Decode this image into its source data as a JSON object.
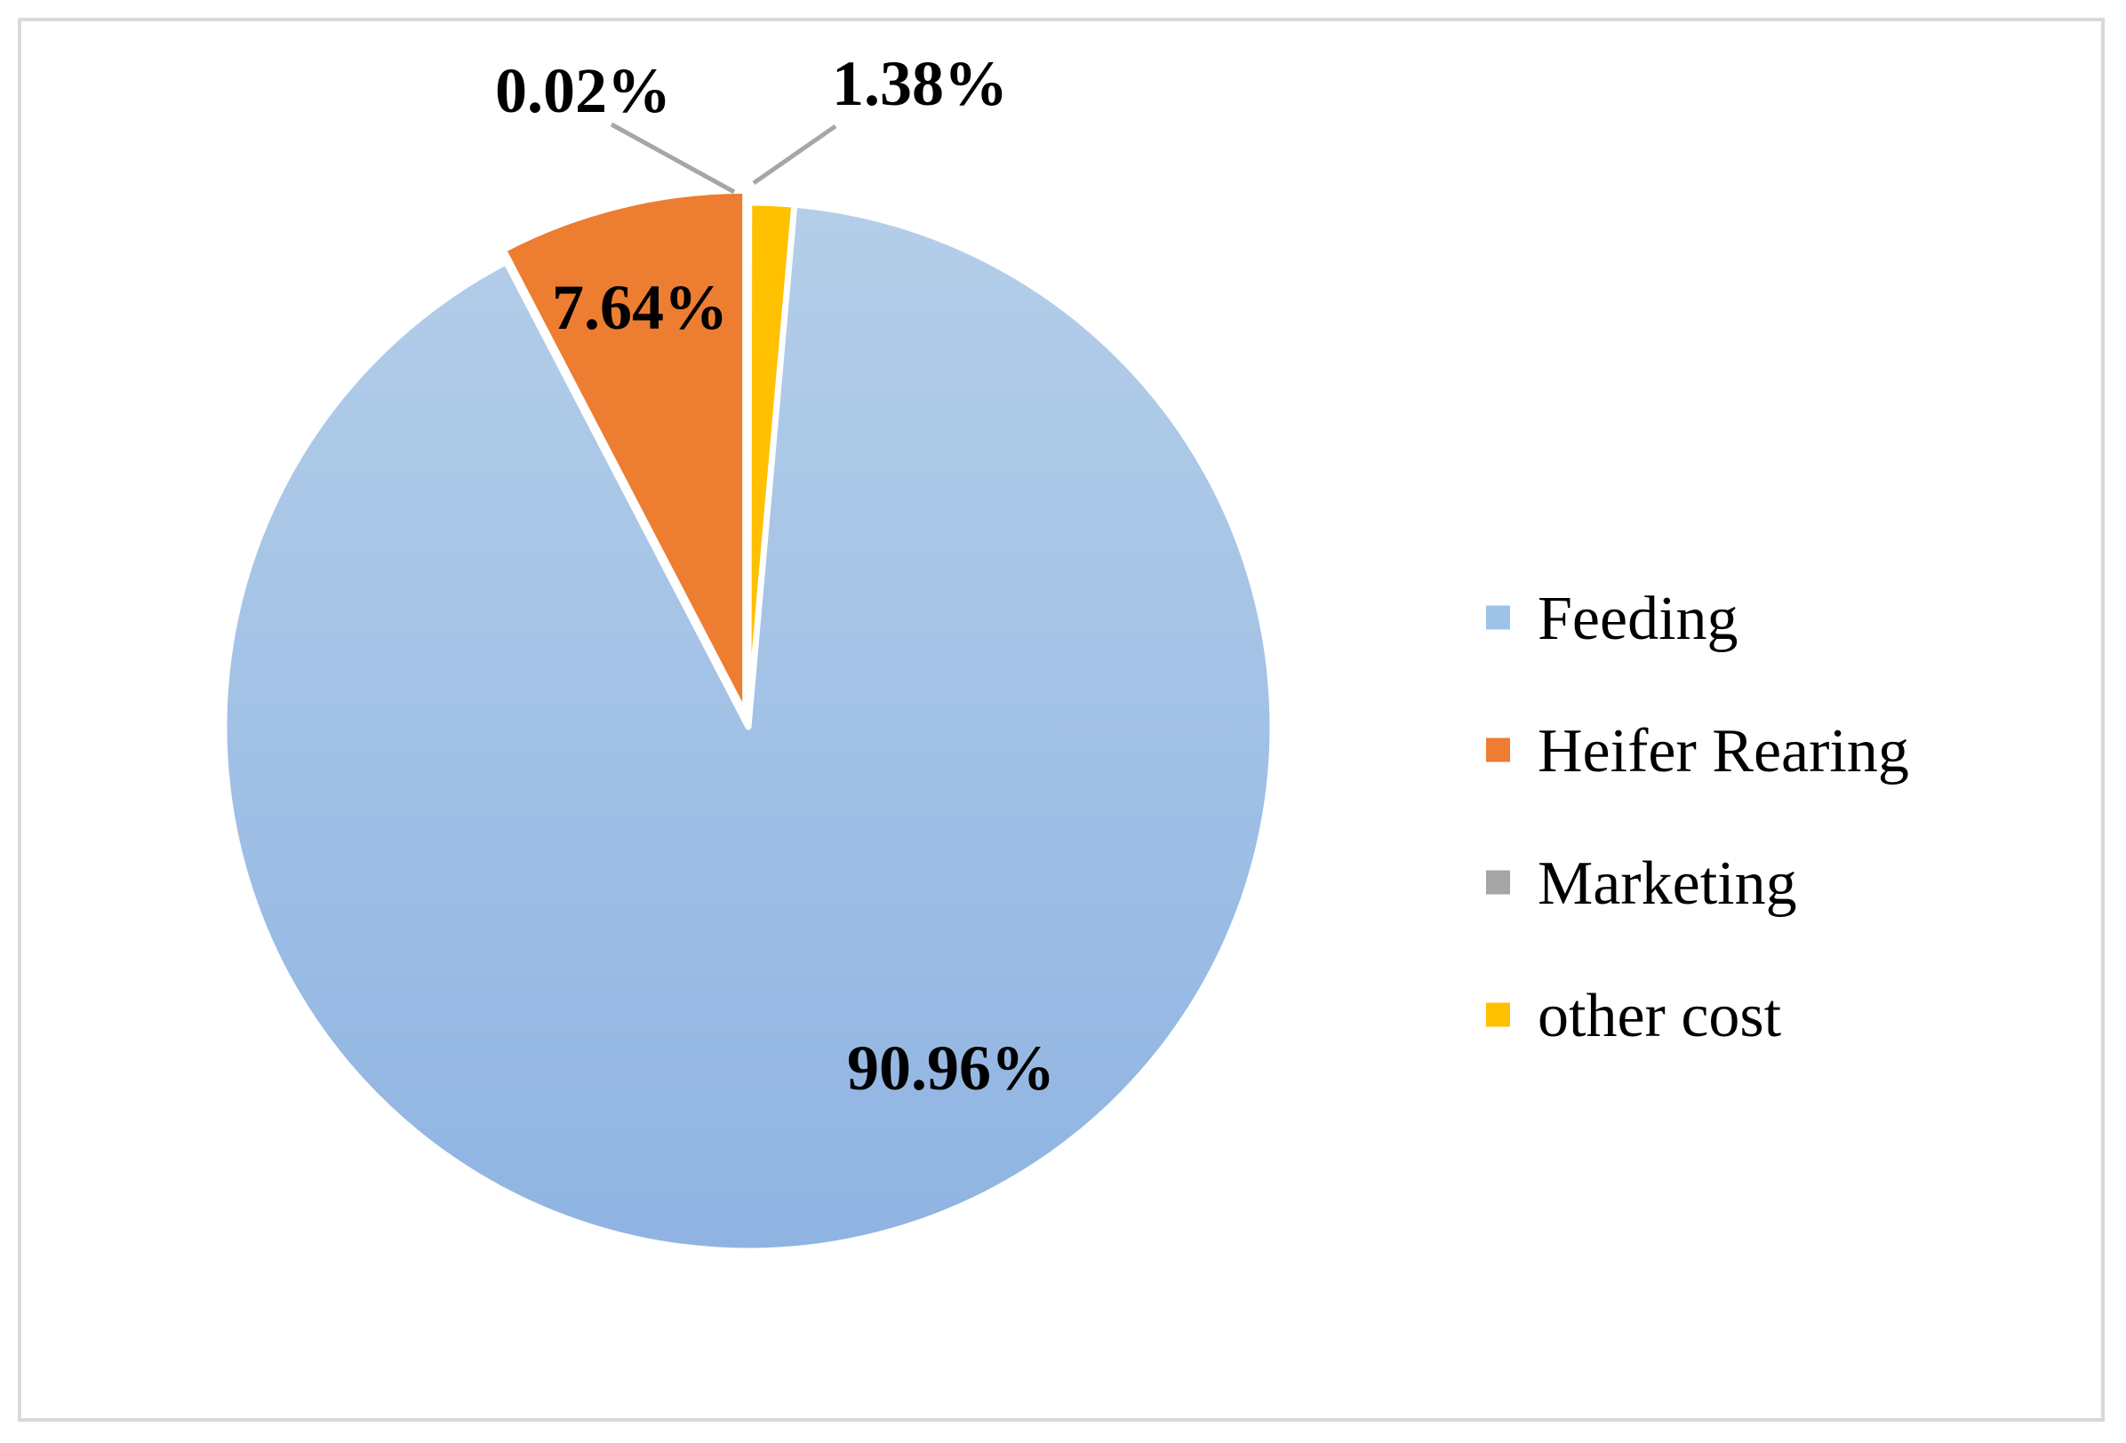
{
  "chart_data": {
    "type": "pie",
    "title": "",
    "slices": [
      {
        "label": "Feeding",
        "value": 90.96,
        "display": "90.96%",
        "color": "#9dc3e6"
      },
      {
        "label": "Heifer Rearing",
        "value": 7.64,
        "display": "7.64%",
        "color": "#ed7d31"
      },
      {
        "label": "Marketing",
        "value": 0.02,
        "display": "0.02%",
        "color": "#a5a5a5"
      },
      {
        "label": "other cost",
        "value": 1.38,
        "display": "1.38%",
        "color": "#ffc000"
      }
    ],
    "start_angle": "12 o'clock",
    "direction": "clockwise",
    "slice_order": [
      "Marketing",
      "other cost",
      "Feeding",
      "Heifer Rearing"
    ],
    "exploded_slices": [
      "Heifer Rearing"
    ],
    "data_labels": "bold percentages, leader lines for the two smallest slices",
    "legend_position": "right",
    "gradient": "Feeding slice shades from lighter blue at top to darker blue at bottom",
    "colors": {
      "feeding_top": "#b4cee9",
      "feeding_bottom": "#8fb4e2",
      "leader_line": "#a6a6a6",
      "frame_border": "#d9d9d9"
    }
  }
}
